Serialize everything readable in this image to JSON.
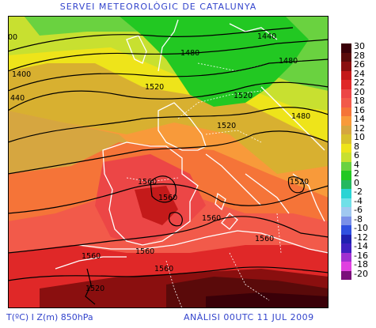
{
  "header": {
    "title": "SERVEI METEOROLÒGIC DE CATALUNYA"
  },
  "footer": {
    "variable": "T(ºC) I Z(m) 850hPa",
    "analysis": "ANÀLISI 00UTC 11 JUL 2009"
  },
  "legend": {
    "unit": "ºC",
    "levels": [
      {
        "label": "30",
        "color": "#3a0008"
      },
      {
        "label": "28",
        "color": "#5a0a0a"
      },
      {
        "label": "26",
        "color": "#8a0f0f"
      },
      {
        "label": "24",
        "color": "#c41a1a"
      },
      {
        "label": "22",
        "color": "#e02828"
      },
      {
        "label": "20",
        "color": "#ec4646"
      },
      {
        "label": "18",
        "color": "#f25a4a"
      },
      {
        "label": "16",
        "color": "#f57438"
      },
      {
        "label": "14",
        "color": "#f89a3a"
      },
      {
        "label": "12",
        "color": "#d6a640"
      },
      {
        "label": "10",
        "color": "#d8c02e"
      },
      {
        "label": "8",
        "color": "#eee41a"
      },
      {
        "label": "6",
        "color": "#c8e030"
      },
      {
        "label": "4",
        "color": "#6ad240"
      },
      {
        "label": "2",
        "color": "#22c822"
      },
      {
        "label": "0",
        "color": "#24b860"
      },
      {
        "label": "-2",
        "color": "#2ad4d4"
      },
      {
        "label": "-4",
        "color": "#70e0e8"
      },
      {
        "label": "-6",
        "color": "#a0c8f0"
      },
      {
        "label": "-8",
        "color": "#7a90e8"
      },
      {
        "label": "-10",
        "color": "#3050e0"
      },
      {
        "label": "-12",
        "color": "#2020b0"
      },
      {
        "label": "-14",
        "color": "#4020c0"
      },
      {
        "label": "-16",
        "color": "#a030d0"
      },
      {
        "label": "-18",
        "color": "#e040e0"
      },
      {
        "label": "-20",
        "color": "#7a0f7a"
      }
    ]
  },
  "contour_labels": [
    {
      "text": "00"
    },
    {
      "text": "1400"
    },
    {
      "text": "440"
    },
    {
      "text": "1440"
    },
    {
      "text": "1480"
    },
    {
      "text": "1480"
    },
    {
      "text": "1520"
    },
    {
      "text": "1520"
    },
    {
      "text": "1520"
    },
    {
      "text": "1480"
    },
    {
      "text": "1520"
    },
    {
      "text": "1560"
    },
    {
      "text": "1560"
    },
    {
      "text": "1560"
    },
    {
      "text": "1560"
    },
    {
      "text": "1560"
    },
    {
      "text": "1560"
    },
    {
      "text": "1560"
    },
    {
      "text": "1520"
    }
  ]
}
